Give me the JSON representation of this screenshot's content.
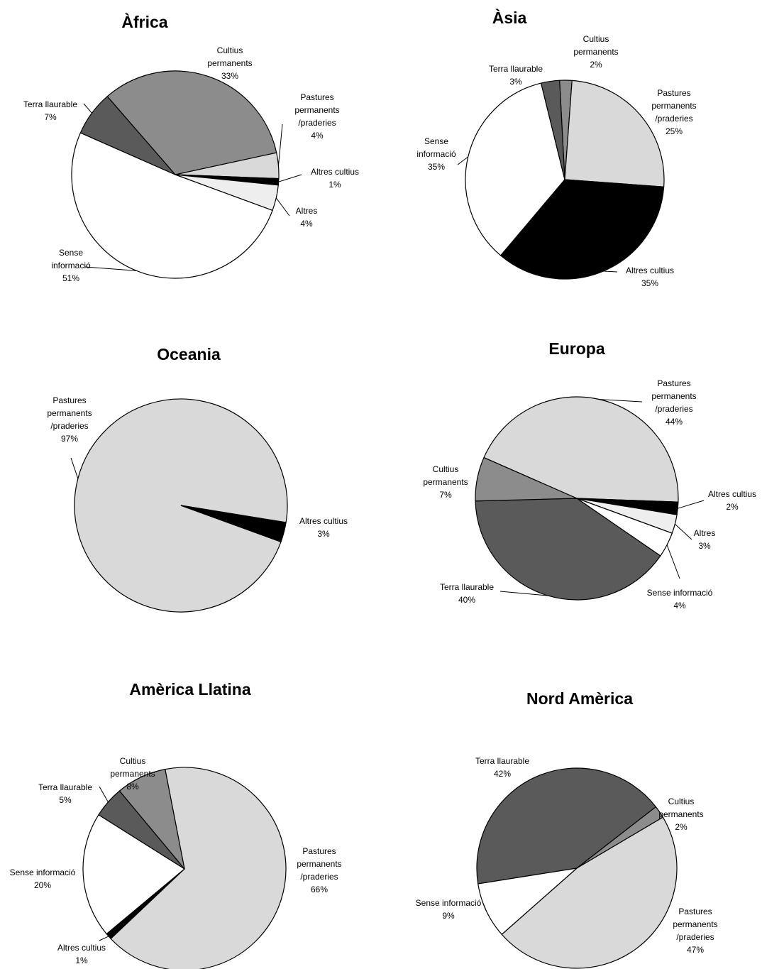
{
  "chart_data": [
    {
      "type": "pie",
      "title": "Àfrica",
      "categories": [
        "Cultius\npermanents",
        "Pastures\npermanents\n/praderies",
        "Altres cultius",
        "Altres",
        "Sense\ninformació",
        "Terra llaurable"
      ],
      "values": [
        33,
        4,
        1,
        4,
        51,
        7
      ],
      "value_labels": [
        "33%",
        "4%",
        "1%",
        "4%",
        "51%",
        "7%"
      ],
      "colors": [
        "#8c8c8c",
        "#d9d9d9",
        "#000000",
        "#eeeeee",
        "#ffffff",
        "#5a5a5a"
      ]
    },
    {
      "type": "pie",
      "title": "Àsia",
      "categories": [
        "Cultius\npermanents",
        "Pastures\npermanents\n/praderies",
        "Altres cultius",
        "Sense\ninformació",
        "Terra llaurable"
      ],
      "values": [
        2,
        25,
        35,
        35,
        3
      ],
      "value_labels": [
        "2%",
        "25%",
        "35%",
        "35%",
        "3%"
      ],
      "colors": [
        "#8c8c8c",
        "#d9d9d9",
        "#000000",
        "#ffffff",
        "#5a5a5a"
      ]
    },
    {
      "type": "pie",
      "title": "Oceania",
      "categories": [
        "Pastures\npermanents\n/praderies",
        "Altres cultius"
      ],
      "values": [
        97,
        3
      ],
      "value_labels": [
        "97%",
        "3%"
      ],
      "colors": [
        "#d9d9d9",
        "#000000"
      ]
    },
    {
      "type": "pie",
      "title": "Europa",
      "categories": [
        "Pastures\npermanents\n/praderies",
        "Altres cultius",
        "Altres",
        "Sense informació",
        "Terra llaurable",
        "Cultius\npermanents"
      ],
      "values": [
        44,
        2,
        3,
        4,
        40,
        7
      ],
      "value_labels": [
        "44%",
        "2%",
        "3%",
        "4%",
        "40%",
        "7%"
      ],
      "colors": [
        "#d9d9d9",
        "#000000",
        "#eeeeee",
        "#ffffff",
        "#5a5a5a",
        "#8c8c8c"
      ]
    },
    {
      "type": "pie",
      "title": "Amèrica Llatina",
      "categories": [
        "Pastures\npermanents\n/praderies",
        "Altres cultius",
        "Sense informació",
        "Terra llaurable",
        "Cultius\npermanents"
      ],
      "values": [
        66,
        1,
        20,
        5,
        8
      ],
      "value_labels": [
        "66%",
        "1%",
        "20%",
        "5%",
        "8%"
      ],
      "colors": [
        "#d9d9d9",
        "#000000",
        "#ffffff",
        "#5a5a5a",
        "#8c8c8c"
      ]
    },
    {
      "type": "pie",
      "title": "Nord Amèrica",
      "categories": [
        "Terra llaurable",
        "Cultius\npermanents",
        "Pastures\npermanents\n/praderies",
        "Sense informació"
      ],
      "values": [
        42,
        2,
        47,
        9
      ],
      "value_labels": [
        "42%",
        "2%",
        "47%",
        "9%"
      ],
      "colors": [
        "#5a5a5a",
        "#8c8c8c",
        "#d9d9d9",
        "#ffffff"
      ]
    }
  ]
}
